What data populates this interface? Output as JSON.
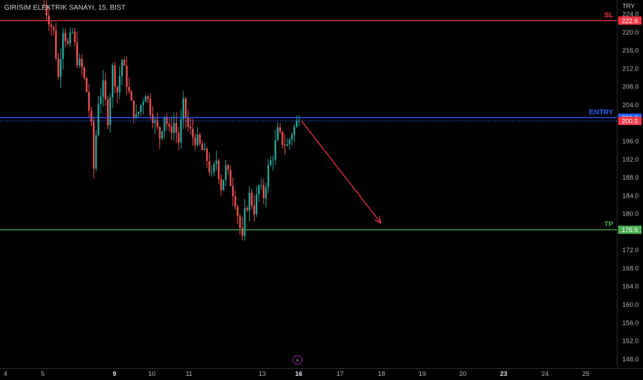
{
  "header": {
    "symbol": "GIRISIM ELEKTRIK SANAYI, 15, BIST",
    "currency": "TRY"
  },
  "colors": {
    "background": "#000000",
    "candle_up": "#26a69a",
    "candle_down": "#ef5350",
    "sl_line": "#f23645",
    "entry_line": "#2962ff",
    "tp_line": "#4caf50",
    "arrow": "#f23645",
    "axis_text": "#b2b5be"
  },
  "icons": {
    "replay": "lightning-icon"
  },
  "chart_data": {
    "type": "candlestick",
    "title": "GIRISIM ELEKTRIK SANAYI, 15, BIST",
    "y_unit": "TRY",
    "ylim": [
      146,
      225
    ],
    "y_ticks": [
      224.0,
      220.0,
      216.0,
      212.0,
      208.0,
      204.0,
      196.0,
      192.0,
      188.0,
      184.0,
      180.0,
      172.0,
      168.0,
      164.0,
      160.0,
      156.0,
      152.0,
      148.0
    ],
    "x_ticks": [
      {
        "label": "4",
        "bold": false
      },
      {
        "label": "5",
        "bold": false
      },
      {
        "label": "9",
        "bold": true
      },
      {
        "label": "10",
        "bold": false
      },
      {
        "label": "11",
        "bold": false
      },
      {
        "label": "13",
        "bold": false
      },
      {
        "label": "16",
        "bold": true
      },
      {
        "label": "17",
        "bold": false
      },
      {
        "label": "18",
        "bold": false
      },
      {
        "label": "19",
        "bold": false
      },
      {
        "label": "20",
        "bold": false
      },
      {
        "label": "23",
        "bold": true
      },
      {
        "label": "24",
        "bold": false
      },
      {
        "label": "25",
        "bold": false
      }
    ],
    "levels": [
      {
        "name": "SL",
        "value": 222.6,
        "label": "222.6",
        "style": "solid"
      },
      {
        "name": "ENTRY",
        "value": 201.2,
        "label": "201.2",
        "style": "solid"
      },
      {
        "name": "",
        "value": 200.5,
        "label": "200.5",
        "style": "dotted"
      },
      {
        "name": "TP",
        "value": 176.5,
        "label": "176.5",
        "style": "solid"
      }
    ],
    "arrow": {
      "from_price": 200.5,
      "to_price": 178.0
    },
    "price_path": [
      [
        0,
        226
      ],
      [
        2,
        223
      ],
      [
        4,
        220
      ],
      [
        6,
        210
      ],
      [
        8,
        221
      ],
      [
        10,
        217
      ],
      [
        12,
        220
      ],
      [
        14,
        214
      ],
      [
        16,
        212
      ],
      [
        18,
        207
      ],
      [
        20,
        199
      ],
      [
        21,
        190
      ],
      [
        23,
        205
      ],
      [
        25,
        208
      ],
      [
        27,
        201
      ],
      [
        29,
        212
      ],
      [
        31,
        207
      ],
      [
        33,
        214
      ],
      [
        35,
        209
      ],
      [
        37,
        204
      ],
      [
        39,
        201
      ],
      [
        41,
        204
      ],
      [
        43,
        207
      ],
      [
        45,
        203
      ],
      [
        47,
        200
      ],
      [
        49,
        197
      ],
      [
        51,
        202
      ],
      [
        53,
        198
      ],
      [
        55,
        200
      ],
      [
        57,
        196
      ],
      [
        59,
        204
      ],
      [
        61,
        199
      ],
      [
        63,
        197
      ],
      [
        65,
        196
      ],
      [
        67,
        194
      ],
      [
        69,
        192
      ],
      [
        71,
        188
      ],
      [
        73,
        192
      ],
      [
        75,
        186
      ],
      [
        77,
        190
      ],
      [
        79,
        187
      ],
      [
        81,
        183
      ],
      [
        83,
        177
      ],
      [
        84,
        174
      ],
      [
        85,
        180
      ],
      [
        87,
        184
      ],
      [
        89,
        181
      ],
      [
        91,
        186
      ],
      [
        93,
        184
      ],
      [
        95,
        190
      ],
      [
        97,
        193
      ],
      [
        99,
        198
      ],
      [
        101,
        196
      ],
      [
        103,
        195
      ],
      [
        105,
        198
      ],
      [
        107,
        200
      ],
      [
        108,
        202
      ]
    ]
  }
}
